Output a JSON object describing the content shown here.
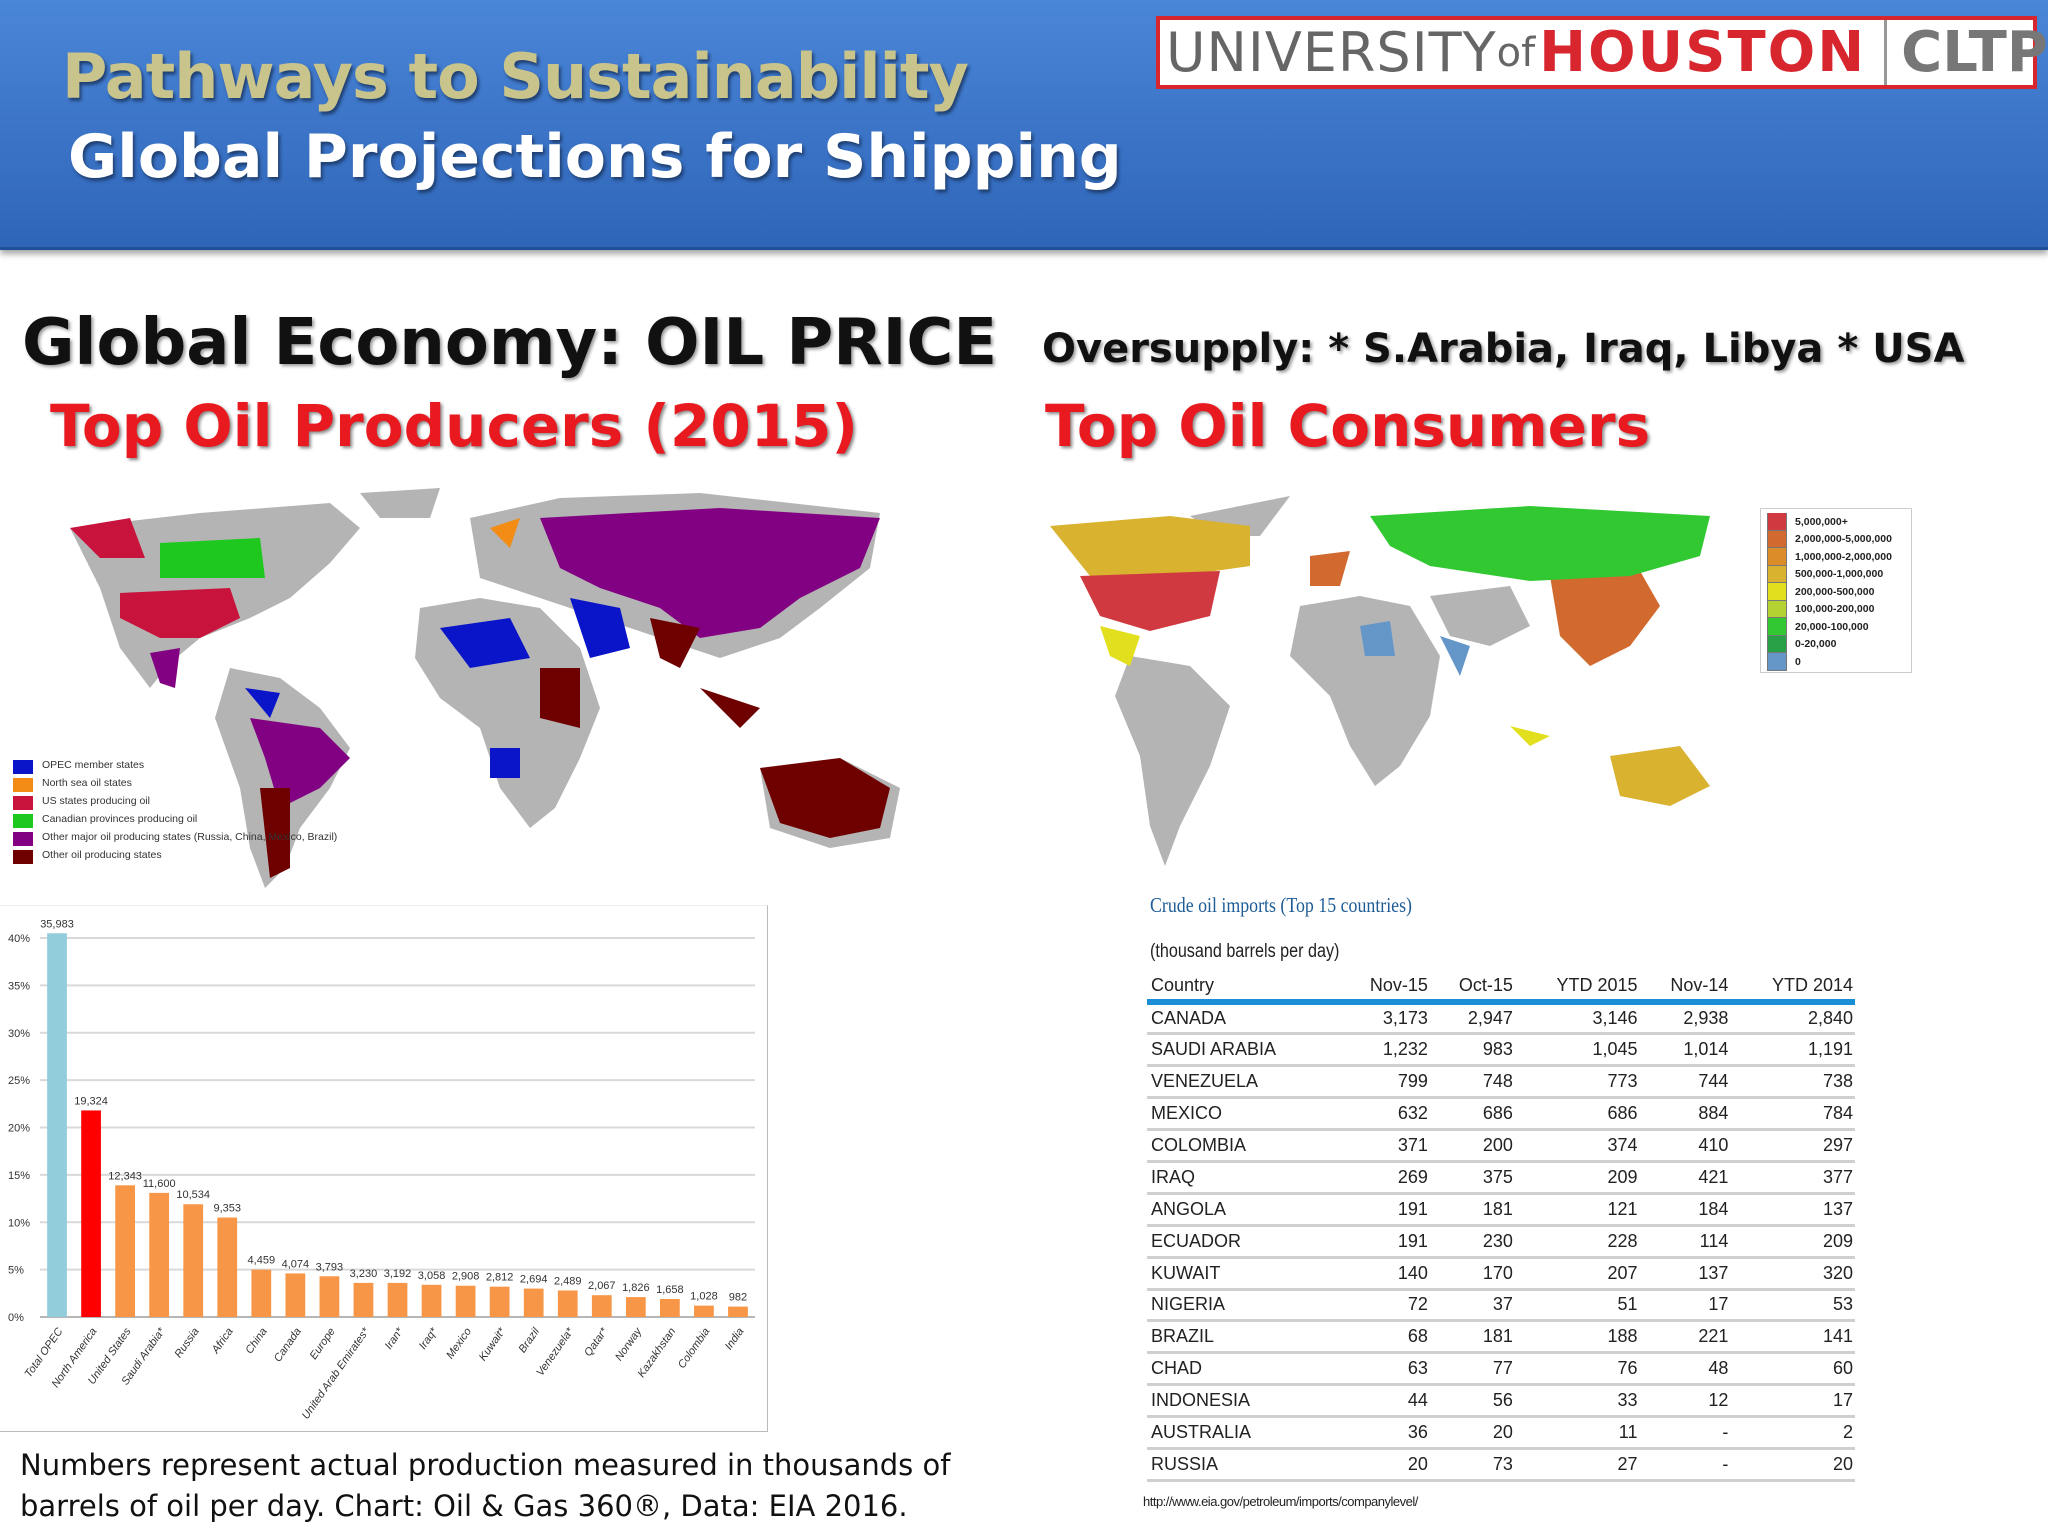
{
  "header": {
    "title_line1": "Pathways to Sustainability",
    "title_line2": "Global Projections for Shipping",
    "logo": {
      "university": "UNIVERSITY",
      "of": "of",
      "houston": "HOUSTON",
      "unit": "CLTP"
    }
  },
  "left": {
    "heading": "Global Economy:  OIL PRICE",
    "subheading": "Top Oil Producers  (2015)",
    "map_legend": [
      {
        "label": "OPEC member states",
        "color": "#0a14c8"
      },
      {
        "label": "North sea oil states",
        "color": "#f28c14"
      },
      {
        "label": "US states producing oil",
        "color": "#c8143c"
      },
      {
        "label": "Canadian provinces producing oil",
        "color": "#1ec81e"
      },
      {
        "label": "Other major oil producing states (Russia, China, Mexico, Brazil)",
        "color": "#820082"
      },
      {
        "label": "Other oil producing states",
        "color": "#6e0000"
      }
    ],
    "caption_line1": "Numbers represent actual production measured in thousands of",
    "caption_line2": "barrels of oil per day. Chart: Oil & Gas 360®, Data: EIA 2016."
  },
  "right": {
    "heading": "Oversupply:  * S.Arabia, Iraq, Libya  * USA",
    "subheading": "Top Oil Consumers",
    "map_legend": [
      {
        "label": "5,000,000+",
        "color": "#d0393f"
      },
      {
        "label": "2,000,000-5,000,000",
        "color": "#d2692e"
      },
      {
        "label": "1,000,000-2,000,000",
        "color": "#dc8c28"
      },
      {
        "label": "500,000-1,000,000",
        "color": "#d9b230"
      },
      {
        "label": "200,000-500,000",
        "color": "#e2e01e"
      },
      {
        "label": "100,000-200,000",
        "color": "#b4d232"
      },
      {
        "label": "20,000-100,000",
        "color": "#32c832"
      },
      {
        "label": "0-20,000",
        "color": "#28a046"
      },
      {
        "label": "0",
        "color": "#6496c8"
      }
    ],
    "table": {
      "title": "Crude oil imports (Top 15 countries)",
      "unit": "(thousand barrels per day)",
      "columns": [
        "Country",
        "Nov-15",
        "Oct-15",
        "YTD 2015",
        "Nov-14",
        "YTD 2014"
      ],
      "rows": [
        [
          "CANADA",
          "3,173",
          "2,947",
          "3,146",
          "2,938",
          "2,840"
        ],
        [
          "SAUDI ARABIA",
          "1,232",
          "983",
          "1,045",
          "1,014",
          "1,191"
        ],
        [
          "VENEZUELA",
          "799",
          "748",
          "773",
          "744",
          "738"
        ],
        [
          "MEXICO",
          "632",
          "686",
          "686",
          "884",
          "784"
        ],
        [
          "COLOMBIA",
          "371",
          "200",
          "374",
          "410",
          "297"
        ],
        [
          "IRAQ",
          "269",
          "375",
          "209",
          "421",
          "377"
        ],
        [
          "ANGOLA",
          "191",
          "181",
          "121",
          "184",
          "137"
        ],
        [
          "ECUADOR",
          "191",
          "230",
          "228",
          "114",
          "209"
        ],
        [
          "KUWAIT",
          "140",
          "170",
          "207",
          "137",
          "320"
        ],
        [
          "NIGERIA",
          "72",
          "37",
          "51",
          "17",
          "53"
        ],
        [
          "BRAZIL",
          "68",
          "181",
          "188",
          "221",
          "141"
        ],
        [
          "CHAD",
          "63",
          "77",
          "76",
          "48",
          "60"
        ],
        [
          "INDONESIA",
          "44",
          "56",
          "33",
          "12",
          "17"
        ],
        [
          "AUSTRALIA",
          "36",
          "20",
          "11",
          "-",
          "2"
        ],
        [
          "RUSSIA",
          "20",
          "73",
          "27",
          "-",
          "20"
        ]
      ]
    },
    "source_url": "http://www.eia.gov/petroleum/imports/companylevel/"
  },
  "chart_data": {
    "type": "bar",
    "title": "",
    "xlabel": "",
    "ylabel": "",
    "ylim": [
      0,
      40
    ],
    "yticks": [
      "0%",
      "5%",
      "10%",
      "15%",
      "20%",
      "25%",
      "30%",
      "35%",
      "40%"
    ],
    "grid": true,
    "categories": [
      "Total OPEC",
      "North America",
      "United States",
      "Saudi Arabia*",
      "Russia",
      "Africa",
      "China",
      "Canada",
      "Europe",
      "United Arab Emirates*",
      "Iran*",
      "Iraq*",
      "Mexico",
      "Kuwait*",
      "Brazil",
      "Venezuela*",
      "Qatar*",
      "Norway",
      "Kazakhstan",
      "Colombia",
      "India"
    ],
    "data_labels": [
      "35,983",
      "19,324",
      "12,343",
      "11,600",
      "10,534",
      "9,353",
      "4,459",
      "4,074",
      "3,793",
      "3,230",
      "3,192",
      "3,058",
      "2,908",
      "2,812",
      "2,694",
      "2,489",
      "2,067",
      "1,826",
      "1,658",
      "1,028",
      "982"
    ],
    "values_pct": [
      40.5,
      21.8,
      13.9,
      13.1,
      11.9,
      10.5,
      5.0,
      4.6,
      4.3,
      3.6,
      3.6,
      3.4,
      3.3,
      3.2,
      3.0,
      2.8,
      2.3,
      2.1,
      1.9,
      1.2,
      1.1
    ],
    "colors": {
      "opec": "#92cddc",
      "north_america": "#ff0000",
      "other": "#f79646"
    }
  }
}
